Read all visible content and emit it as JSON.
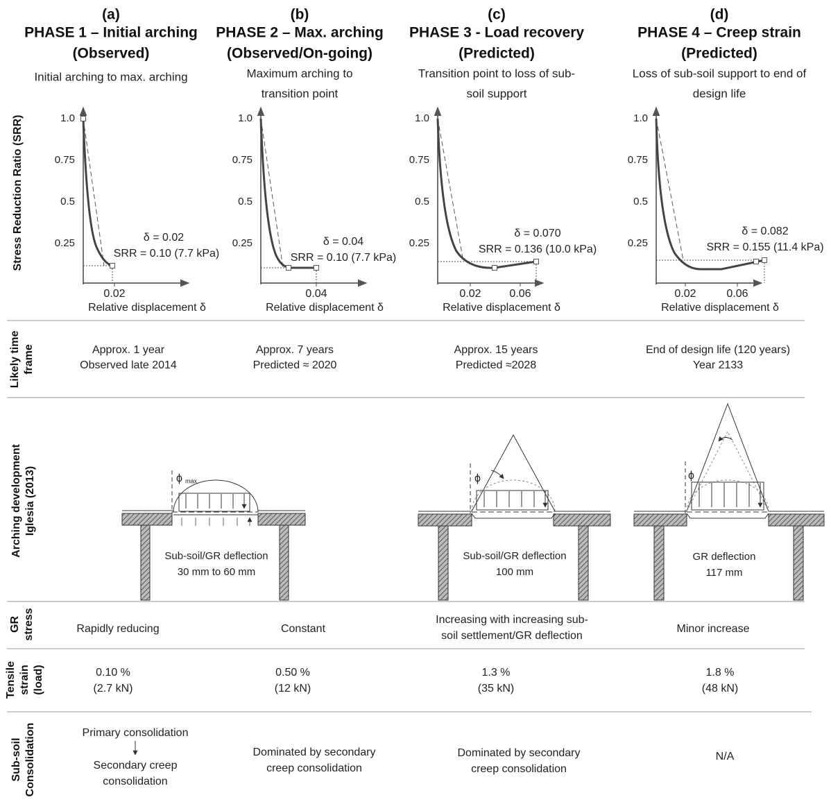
{
  "row_labels": {
    "srr": "Stress Reduction Ratio (SRR)",
    "time_frame": [
      "Likely time",
      "frame"
    ],
    "arching": [
      "Arching development",
      "Iglesia (2013)"
    ],
    "gr_stress": [
      "GR",
      "stress"
    ],
    "tensile": [
      "Tensile",
      "strain",
      "(load)"
    ],
    "consolidation": [
      "Sub-soil",
      "Consolidation"
    ]
  },
  "phases": [
    {
      "label": "(a)",
      "title": "PHASE 1 – Initial arching",
      "status": "(Observed)",
      "description": [
        "Initial arching to max. arching"
      ],
      "chart": {
        "yticks": [
          "1.0",
          "0.75",
          "0.5",
          "0.25"
        ],
        "xticks": [
          "0.02"
        ],
        "xlabel": "Relative displacement δ",
        "delta": "δ = 0.02",
        "srr": "SRR = 0.10 (7.7 kPa)"
      },
      "time_frame": [
        "Approx. 1 year",
        "Observed late 2014"
      ],
      "gr_stress": [
        "Rapidly reducing"
      ],
      "tensile": [
        "0.10 %",
        "(2.7 kN)"
      ],
      "consolidation": [
        "Primary consolidation",
        "Secondary creep",
        "consolidation"
      ]
    },
    {
      "label": "(b)",
      "title": "PHASE 2 – Max. arching",
      "status": "(Observed/On-going)",
      "description": [
        "Maximum arching to",
        "transition point"
      ],
      "chart": {
        "yticks": [
          "1.0",
          "0.75",
          "0.5",
          "0.25"
        ],
        "xticks": [
          "0.04"
        ],
        "xlabel": "Relative displacement δ",
        "delta": "δ = 0.04",
        "srr": "SRR = 0.10 (7.7 kPa)"
      },
      "time_frame": [
        "Approx. 7 years",
        "Predicted ≈ 2020"
      ],
      "gr_stress": [
        "Constant"
      ],
      "tensile": [
        "0.50 %",
        "(12 kN)"
      ],
      "consolidation": [
        "Dominated by secondary",
        "creep consolidation"
      ]
    },
    {
      "label": "(c)",
      "title": "PHASE 3 - Load recovery",
      "status": "(Predicted)",
      "description": [
        "Transition point to loss of sub-",
        "soil support"
      ],
      "chart": {
        "yticks": [
          "1.0",
          "0.75",
          "0.5",
          "0.25"
        ],
        "xticks": [
          "0.02",
          "0.06"
        ],
        "xlabel": "Relative displacement δ",
        "delta": "δ = 0.070",
        "srr": "SRR = 0.136 (10.0 kPa)"
      },
      "time_frame": [
        "Approx. 15 years",
        "Predicted ≈2028"
      ],
      "gr_stress": [
        "Increasing with increasing sub-",
        "soil settlement/GR deflection"
      ],
      "tensile": [
        "1.3 %",
        "(35 kN)"
      ],
      "consolidation": [
        "Dominated by secondary",
        "creep consolidation"
      ]
    },
    {
      "label": "(d)",
      "title": "PHASE 4 – Creep strain",
      "status": "(Predicted)",
      "description": [
        "Loss of sub-soil support to end of",
        "design life"
      ],
      "chart": {
        "yticks": [
          "1.0",
          "0.75",
          "0.5",
          "0.25"
        ],
        "xticks": [
          "0.02",
          "0.06"
        ],
        "xlabel": "Relative displacement δ",
        "delta": "δ = 0.082",
        "srr": "SRR = 0.155 (11.4 kPa)"
      },
      "time_frame": [
        "End of design life (120 years)",
        "Year 2133"
      ],
      "gr_stress": [
        "Minor increase"
      ],
      "tensile": [
        "1.8 %",
        "(48 kN)"
      ],
      "consolidation": [
        "N/A"
      ]
    }
  ],
  "arching": [
    {
      "angle": "ϕ",
      "angle_sub": "max",
      "text": [
        "Sub-soil/GR deflection",
        "30 mm to 60 mm"
      ]
    },
    {
      "angle": "ϕ",
      "text": [
        "Sub-soil/GR deflection",
        "100 mm"
      ]
    },
    {
      "angle": "ϕ",
      "text": [
        "GR deflection",
        "117 mm"
      ]
    }
  ]
}
